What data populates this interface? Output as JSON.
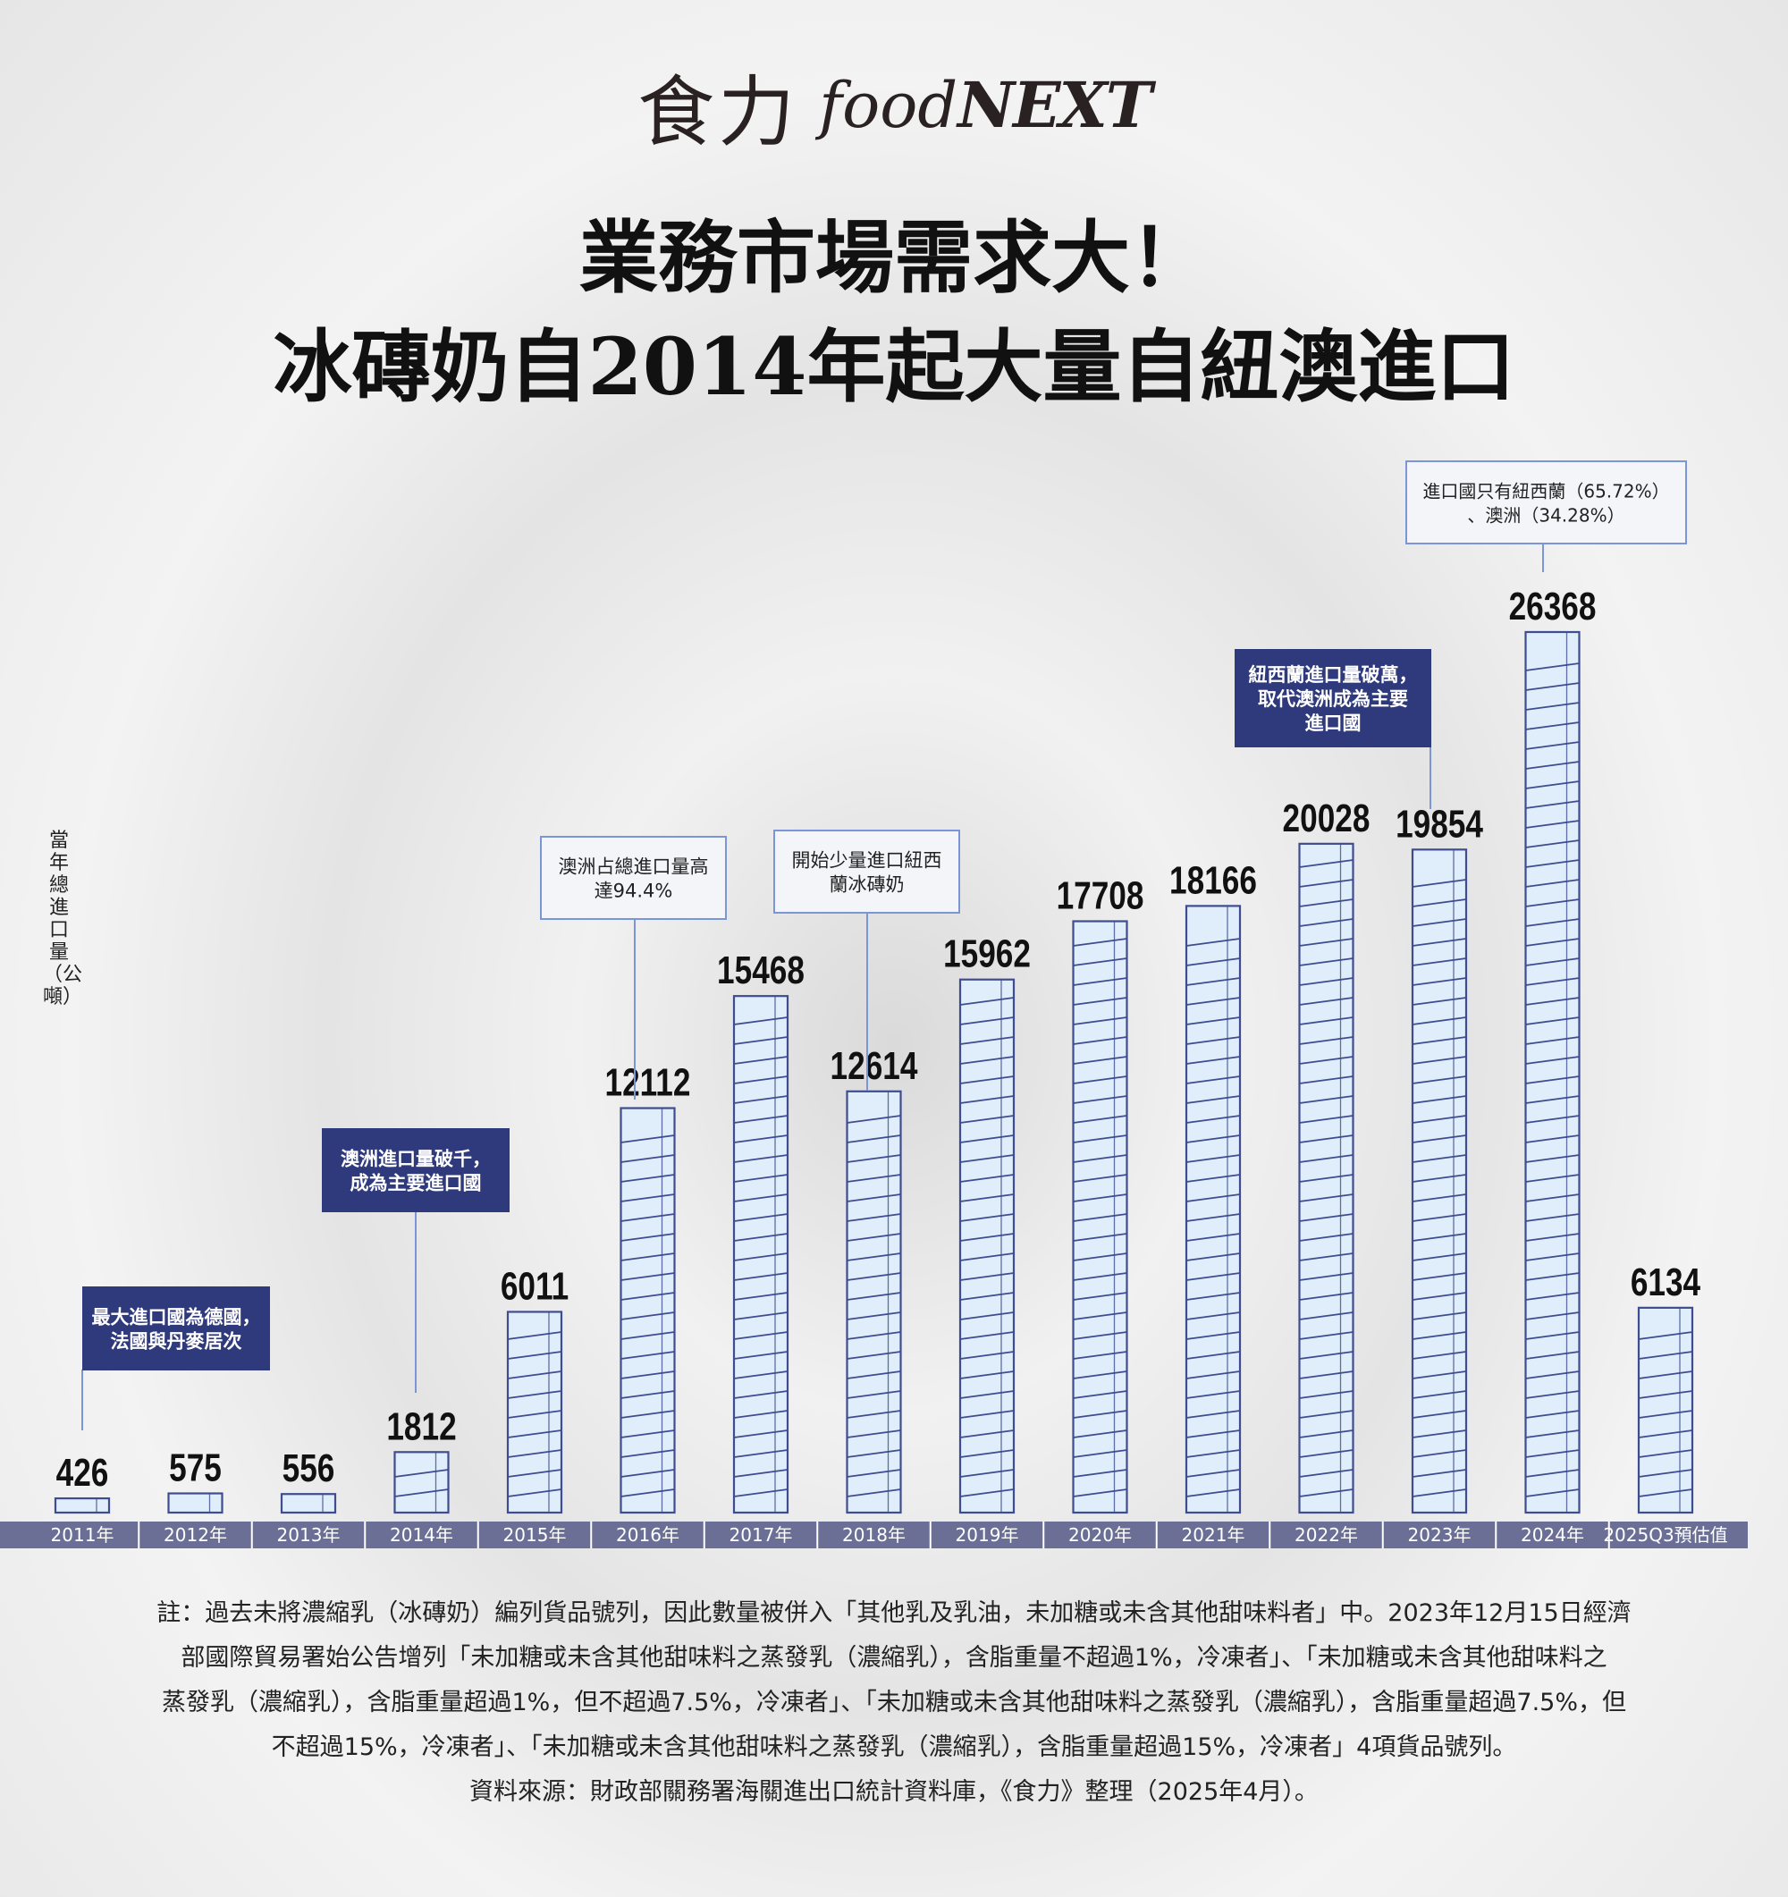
{
  "brand": {
    "zh": "食力",
    "en_prefix": "food",
    "en_suffix": "NEXT"
  },
  "title": {
    "line1": "業務市場需求大！",
    "line2": "冰磚奶自2014年起大量自紐澳進口"
  },
  "y_axis_label": "當年總進口量（公噸）",
  "chart_data": {
    "type": "bar",
    "categories": [
      "2011年",
      "2012年",
      "2013年",
      "2014年",
      "2015年",
      "2016年",
      "2017年",
      "2018年",
      "2019年",
      "2020年",
      "2021年",
      "2022年",
      "2023年",
      "2024年",
      "2025Q3預估值"
    ],
    "values": [
      426,
      575,
      556,
      1812,
      6011,
      12112,
      15468,
      12614,
      15962,
      17708,
      18166,
      20028,
      19854,
      26368,
      6134
    ],
    "ylabel": "當年總進口量（公噸）",
    "ylim": [
      0,
      26368
    ],
    "annotations": [
      {
        "category": "2011年",
        "lines": [
          "最大進口國為德國，",
          "法國與丹麥居次"
        ],
        "style": "dark"
      },
      {
        "category": "2014年",
        "lines": [
          "澳洲進口量破千，",
          "成為主要進口國"
        ],
        "style": "dark"
      },
      {
        "category": "2016年",
        "lines": [
          "澳洲占總進口量高",
          "達94.4%"
        ],
        "style": "light"
      },
      {
        "category": "2018年",
        "lines": [
          "開始少量進口紐西",
          "蘭冰磚奶"
        ],
        "style": "light"
      },
      {
        "category": "2023年",
        "lines": [
          "紐西蘭進口量破萬，",
          "取代澳洲成為主要",
          "進口國"
        ],
        "style": "dark"
      },
      {
        "category": "2024年",
        "lines": [
          "進口國只有紐西蘭（65.72%）",
          "、澳洲（34.28%）"
        ],
        "style": "light"
      }
    ],
    "colors": {
      "bar_fill": "#dfeefa",
      "bar_stroke": "#3f4c8f",
      "axis_band": "#6b6f96",
      "dark_box": "#2f3a7c",
      "connector": "#7a96d6"
    }
  },
  "notes": {
    "line1": "註：過去未將濃縮乳（冰磚奶）編列貨品號列，因此數量被併入「其他乳及乳油，未加糖或未含其他甜味料者」中。2023年12月15日經濟",
    "line2": "部國際貿易署始公告增列「未加糖或未含其他甜味料之蒸發乳（濃縮乳），含脂重量不超過1%，冷凍者」、「未加糖或未含其他甜味料之",
    "line3": "蒸發乳（濃縮乳），含脂重量超過1%，但不超過7.5%，冷凍者」、「未加糖或未含其他甜味料之蒸發乳（濃縮乳），含脂重量超過7.5%，但",
    "line4": "不超過15%，冷凍者」、「未加糖或未含其他甜味料之蒸發乳（濃縮乳），含脂重量超過15%，冷凍者」4項貨品號列。",
    "line5": "資料來源：財政部關務署海關進出口統計資料庫，《食力》整理（2025年4月）。"
  }
}
